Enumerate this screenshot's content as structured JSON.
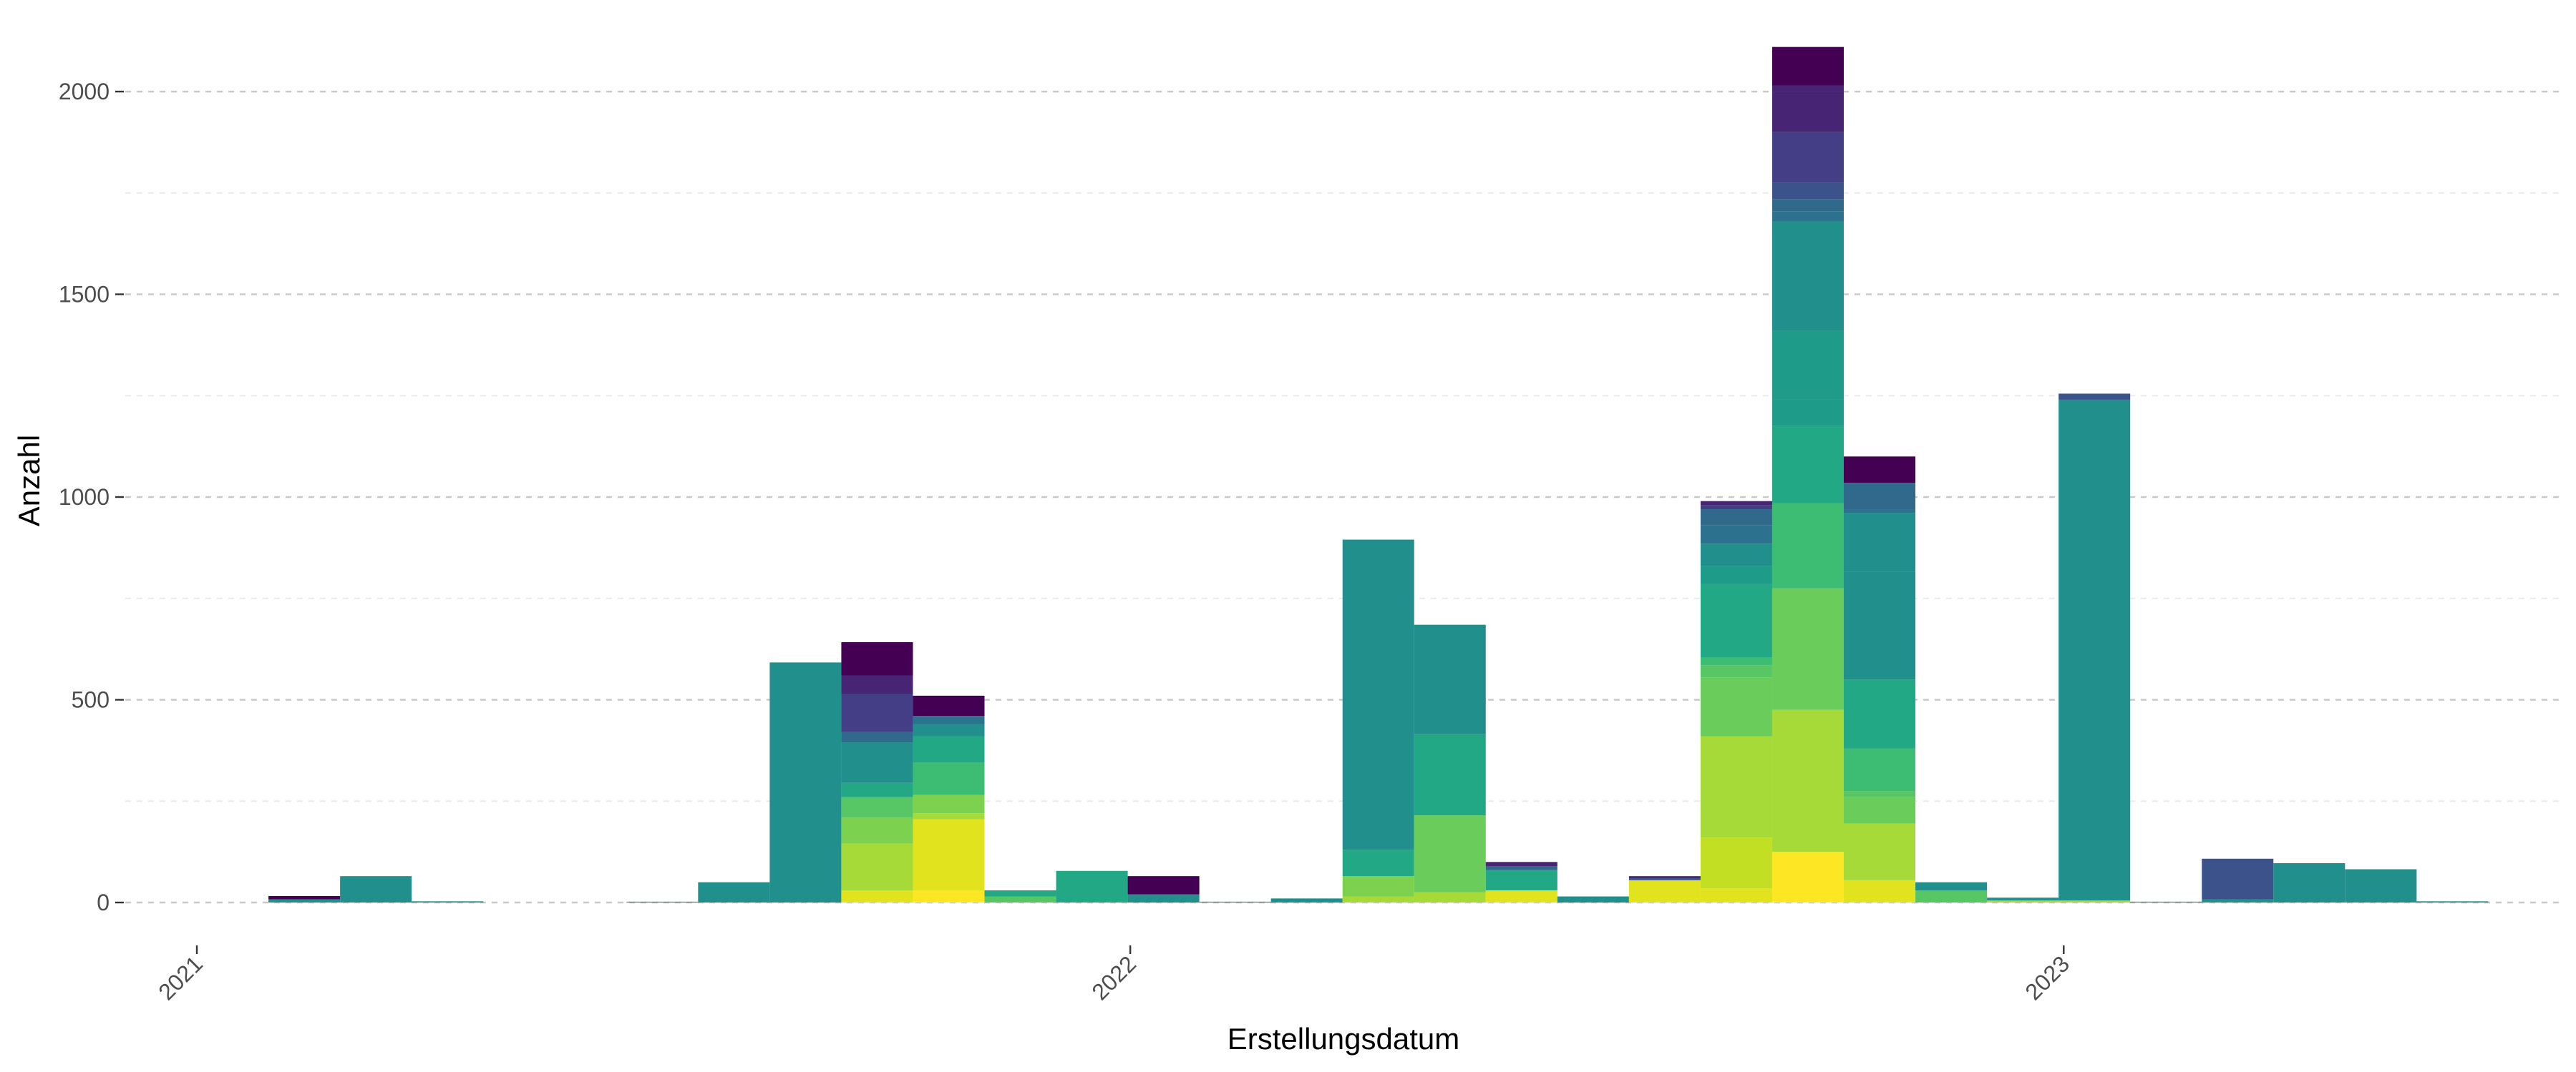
{
  "chart_data": {
    "type": "bar",
    "stacked": true,
    "xlabel": "Erstellungsdatum",
    "ylabel": "Anzahl",
    "ylim": [
      0,
      2120
    ],
    "xlim": [
      "2020-12-04",
      "2023-07-15"
    ],
    "y_ticks": [
      0,
      500,
      1000,
      1500,
      2000
    ],
    "x_ticks": [
      {
        "label": "2021",
        "date": "2021-01-01"
      },
      {
        "label": "2022",
        "date": "2022-01-01"
      },
      {
        "label": "2023",
        "date": "2023-01-01"
      }
    ],
    "grid": "horizontal-dashed",
    "legend": "none",
    "bin_width_days": 28,
    "bins": [
      {
        "start": "2021-01-29",
        "segments": [
          {
            "value": 8,
            "color": "#21908C"
          },
          {
            "value": 8,
            "color": "#440154"
          }
        ]
      },
      {
        "start": "2021-02-26",
        "segments": [
          {
            "value": 65,
            "color": "#21908C"
          }
        ]
      },
      {
        "start": "2021-03-26",
        "segments": [
          {
            "value": 3,
            "color": "#21908C"
          }
        ]
      },
      {
        "start": "2021-06-18",
        "segments": [
          {
            "value": 2,
            "color": "#21908C"
          }
        ]
      },
      {
        "start": "2021-07-16",
        "segments": [
          {
            "value": 50,
            "color": "#21908C"
          }
        ]
      },
      {
        "start": "2021-08-13",
        "segments": [
          {
            "value": 592,
            "color": "#21908C"
          }
        ]
      },
      {
        "start": "2021-09-10",
        "segments": [
          {
            "value": 30,
            "color": "#E0E31E"
          },
          {
            "value": 115,
            "color": "#A6DA38"
          },
          {
            "value": 65,
            "color": "#7CD24E"
          },
          {
            "value": 50,
            "color": "#57C765"
          },
          {
            "value": 35,
            "color": "#22A884"
          },
          {
            "value": 100,
            "color": "#21908C"
          },
          {
            "value": 25,
            "color": "#31698D"
          },
          {
            "value": 95,
            "color": "#433E85"
          },
          {
            "value": 45,
            "color": "#482475"
          },
          {
            "value": 82,
            "color": "#440154"
          }
        ]
      },
      {
        "start": "2021-10-08",
        "segments": [
          {
            "value": 30,
            "color": "#FDE725"
          },
          {
            "value": 175,
            "color": "#E0E31E"
          },
          {
            "value": 15,
            "color": "#A6DA38"
          },
          {
            "value": 45,
            "color": "#7CD24E"
          },
          {
            "value": 80,
            "color": "#3DBC74"
          },
          {
            "value": 65,
            "color": "#22A884"
          },
          {
            "value": 30,
            "color": "#21908C"
          },
          {
            "value": 20,
            "color": "#2C728E"
          },
          {
            "value": 50,
            "color": "#440154"
          }
        ]
      },
      {
        "start": "2021-11-05",
        "segments": [
          {
            "value": 15,
            "color": "#57C765"
          },
          {
            "value": 15,
            "color": "#22A884"
          }
        ]
      },
      {
        "start": "2021-12-03",
        "segments": [
          {
            "value": 78,
            "color": "#22A884"
          }
        ]
      },
      {
        "start": "2021-12-31",
        "segments": [
          {
            "value": 20,
            "color": "#21908C"
          },
          {
            "value": 45,
            "color": "#440154"
          }
        ]
      },
      {
        "start": "2022-01-28",
        "segments": [
          {
            "value": 2,
            "color": "#21908C"
          }
        ]
      },
      {
        "start": "2022-02-25",
        "segments": [
          {
            "value": 10,
            "color": "#21908C"
          }
        ]
      },
      {
        "start": "2022-03-25",
        "segments": [
          {
            "value": 15,
            "color": "#A6DA38"
          },
          {
            "value": 50,
            "color": "#7CD24E"
          },
          {
            "value": 65,
            "color": "#22A884"
          },
          {
            "value": 765,
            "color": "#21908C"
          }
        ]
      },
      {
        "start": "2022-04-22",
        "segments": [
          {
            "value": 25,
            "color": "#A6DA38"
          },
          {
            "value": 190,
            "color": "#6ACD5B"
          },
          {
            "value": 200,
            "color": "#22A884"
          },
          {
            "value": 270,
            "color": "#21908C"
          }
        ]
      },
      {
        "start": "2022-05-20",
        "segments": [
          {
            "value": 30,
            "color": "#E0E31E"
          },
          {
            "value": 50,
            "color": "#22A884"
          },
          {
            "value": 10,
            "color": "#31698D"
          },
          {
            "value": 10,
            "color": "#482475"
          }
        ]
      },
      {
        "start": "2022-06-17",
        "segments": [
          {
            "value": 15,
            "color": "#21908C"
          }
        ]
      },
      {
        "start": "2022-07-15",
        "segments": [
          {
            "value": 55,
            "color": "#E0E31E"
          },
          {
            "value": 5,
            "color": "#3B528B"
          },
          {
            "value": 5,
            "color": "#482475"
          }
        ]
      },
      {
        "start": "2022-08-12",
        "segments": [
          {
            "value": 35,
            "color": "#E0E31E"
          },
          {
            "value": 125,
            "color": "#C2DF23"
          },
          {
            "value": 250,
            "color": "#A6DA38"
          },
          {
            "value": 145,
            "color": "#6ACD5B"
          },
          {
            "value": 30,
            "color": "#57C765"
          },
          {
            "value": 20,
            "color": "#3DBC74"
          },
          {
            "value": 180,
            "color": "#22A884"
          },
          {
            "value": 45,
            "color": "#1E9C89"
          },
          {
            "value": 55,
            "color": "#21908C"
          },
          {
            "value": 45,
            "color": "#2C728E"
          },
          {
            "value": 40,
            "color": "#31698D"
          },
          {
            "value": 10,
            "color": "#433E85"
          },
          {
            "value": 10,
            "color": "#482475"
          }
        ]
      },
      {
        "start": "2022-09-09",
        "segments": [
          {
            "value": 125,
            "color": "#FDE725"
          },
          {
            "value": 350,
            "color": "#A6DA38"
          },
          {
            "value": 300,
            "color": "#6ACD5B"
          },
          {
            "value": 210,
            "color": "#3DBC74"
          },
          {
            "value": 190,
            "color": "#22A884"
          },
          {
            "value": 65,
            "color": "#1E9C89"
          },
          {
            "value": 170,
            "color": "#1E9C89"
          },
          {
            "value": 165,
            "color": "#21908C"
          },
          {
            "value": 105,
            "color": "#21908C"
          },
          {
            "value": 25,
            "color": "#2C728E"
          },
          {
            "value": 30,
            "color": "#31698D"
          },
          {
            "value": 40,
            "color": "#3B528B"
          },
          {
            "value": 125,
            "color": "#433E85"
          },
          {
            "value": 100,
            "color": "#482475"
          },
          {
            "value": 15,
            "color": "#482475"
          },
          {
            "value": 95,
            "color": "#440154"
          }
        ]
      },
      {
        "start": "2022-10-07",
        "segments": [
          {
            "value": 55,
            "color": "#E0E31E"
          },
          {
            "value": 140,
            "color": "#A6DA38"
          },
          {
            "value": 65,
            "color": "#6ACD5B"
          },
          {
            "value": 15,
            "color": "#57C765"
          },
          {
            "value": 105,
            "color": "#3DBC74"
          },
          {
            "value": 170,
            "color": "#22A884"
          },
          {
            "value": 265,
            "color": "#21908C"
          },
          {
            "value": 145,
            "color": "#21908C"
          },
          {
            "value": 10,
            "color": "#2C728E"
          },
          {
            "value": 65,
            "color": "#31698D"
          },
          {
            "value": 65,
            "color": "#440154"
          }
        ]
      },
      {
        "start": "2022-11-04",
        "segments": [
          {
            "value": 30,
            "color": "#57C765"
          },
          {
            "value": 20,
            "color": "#21908C"
          }
        ]
      },
      {
        "start": "2022-12-02",
        "segments": [
          {
            "value": 5,
            "color": "#A6DA38"
          },
          {
            "value": 7,
            "color": "#21908C"
          }
        ]
      },
      {
        "start": "2022-12-30",
        "segments": [
          {
            "value": 5,
            "color": "#A6DA38"
          },
          {
            "value": 1235,
            "color": "#21908C"
          },
          {
            "value": 15,
            "color": "#3B528B"
          }
        ]
      },
      {
        "start": "2023-01-27",
        "segments": [
          {
            "value": 2,
            "color": "#21908C"
          }
        ]
      },
      {
        "start": "2023-02-24",
        "segments": [
          {
            "value": 8,
            "color": "#21908C"
          },
          {
            "value": 100,
            "color": "#3B528B"
          }
        ]
      },
      {
        "start": "2023-03-24",
        "segments": [
          {
            "value": 97,
            "color": "#21908C"
          }
        ]
      },
      {
        "start": "2023-04-21",
        "segments": [
          {
            "value": 82,
            "color": "#21908C"
          }
        ]
      },
      {
        "start": "2023-05-19",
        "segments": [
          {
            "value": 3,
            "color": "#21908C"
          }
        ]
      }
    ]
  }
}
